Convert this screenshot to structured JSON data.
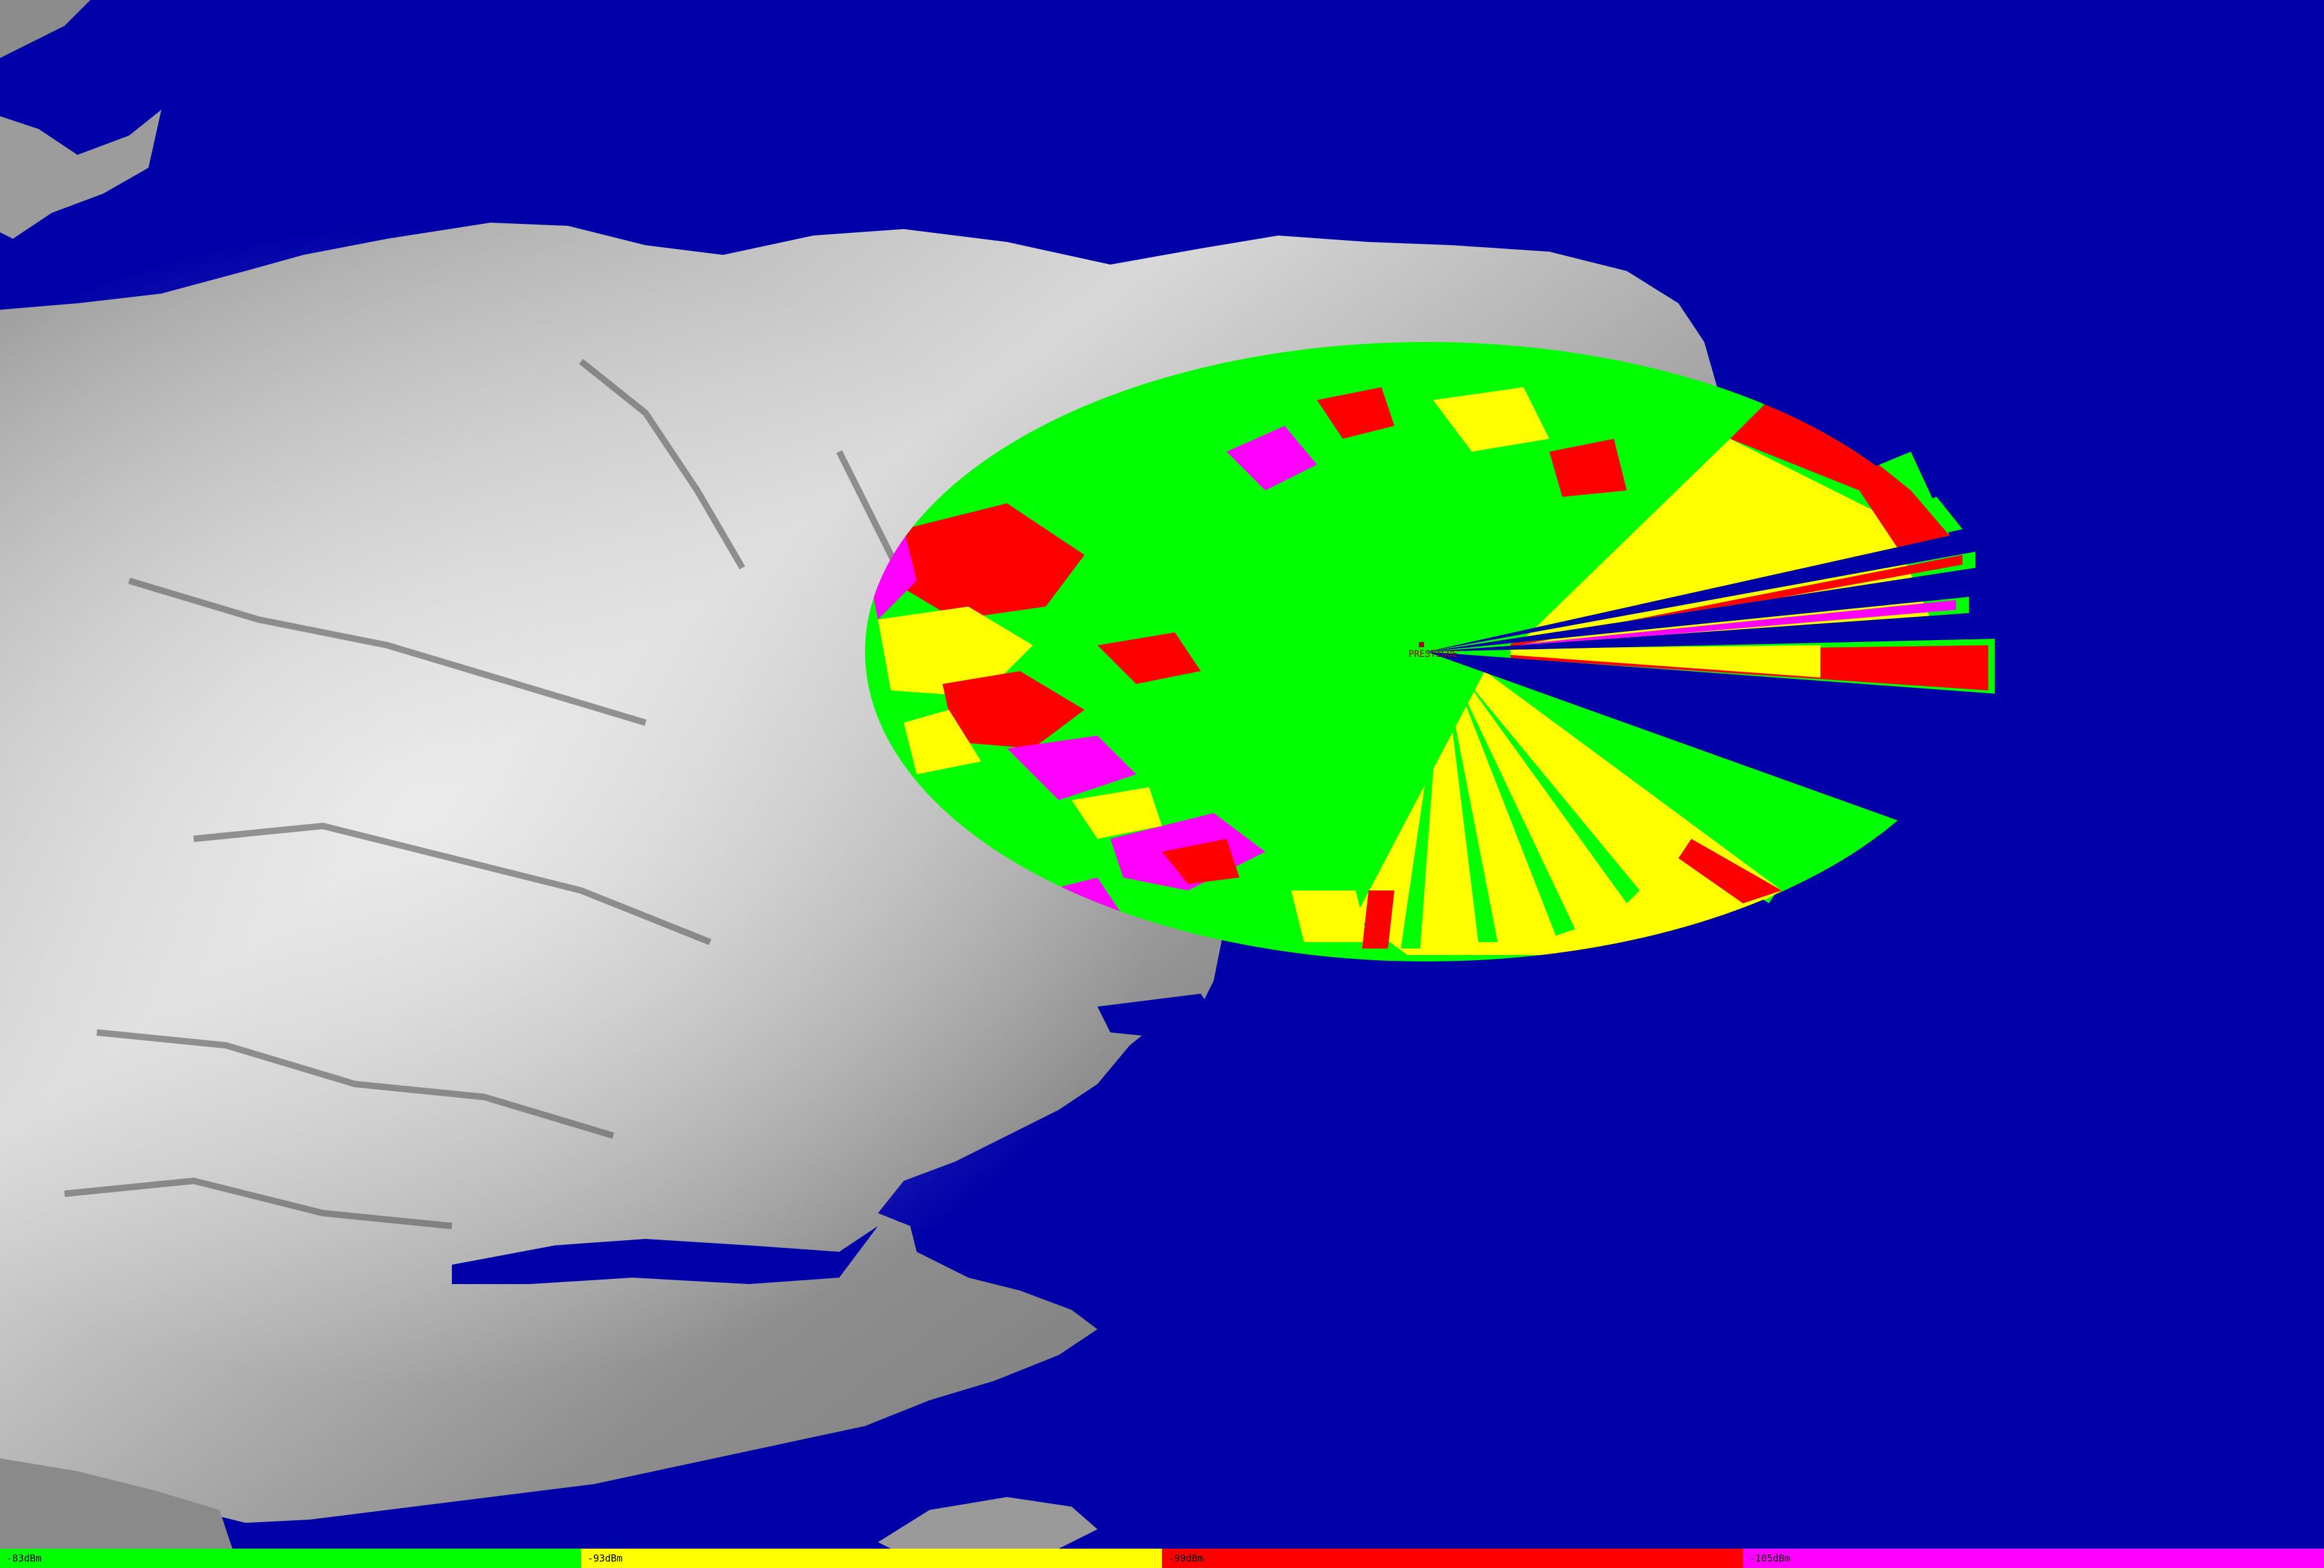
{
  "map": {
    "sea_color": "#0000a8",
    "terrain_style": "grayscale-relief",
    "site": {
      "label": "PRESTIGUE",
      "marker_icon": "transmitter-marker-icon",
      "marker_color": "#aa0000"
    }
  },
  "legend": {
    "items": [
      {
        "label": "-83dBm",
        "color": "#00ff00"
      },
      {
        "label": "-93dBm",
        "color": "#ffff00"
      },
      {
        "label": "-99dBm",
        "color": "#ff0000"
      },
      {
        "label": "-105dBm",
        "color": "#ff00ff"
      }
    ]
  }
}
